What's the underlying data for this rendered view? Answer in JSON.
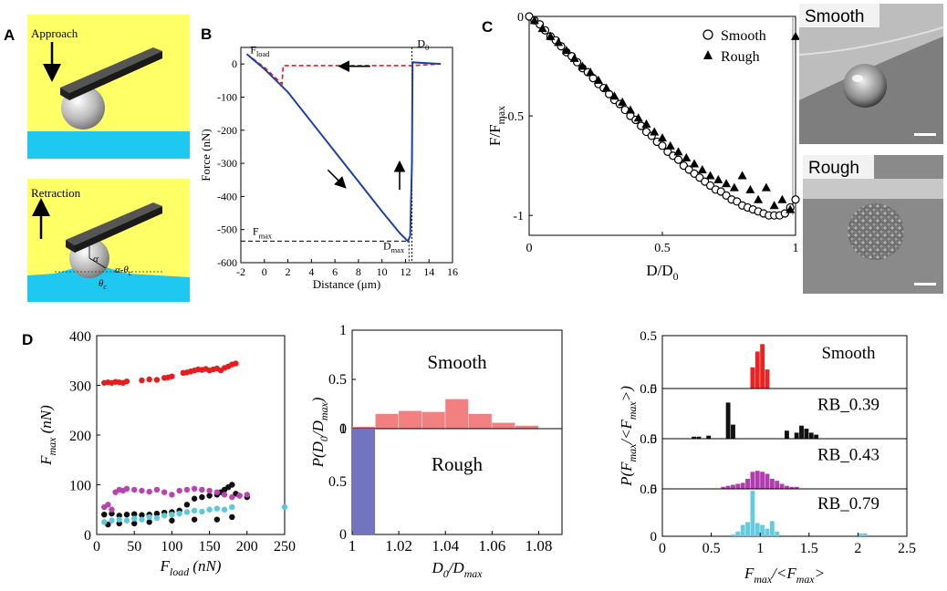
{
  "panel_letters": {
    "A": "A",
    "B": "B",
    "C": "C",
    "D": "D"
  },
  "colors": {
    "yellow": "#ffff66",
    "water": "#1ec8f0",
    "blue_line": "#1f3fa8",
    "red": "#e81c1c",
    "magenta": "#b844b4",
    "black": "#111111",
    "cyan": "#5cc8dc",
    "hist_red": "#f28080",
    "hist_blue": "#7274c0",
    "bar_red": "#ee2222",
    "bar_black": "#111111",
    "bar_magenta": "#b03cb0",
    "bar_cyan": "#66ccdd"
  },
  "panel_A": {
    "approach_label": "Approach",
    "retraction_label": "Retraction",
    "alpha_label": "α",
    "alpha_minus_theta_label": "α-θ",
    "alpha_minus_theta_sub": "c",
    "theta_label": "θ",
    "theta_sub": "c",
    "icon_arrow_down": "arrow-down-icon",
    "icon_arrow_up": "arrow-up-icon"
  },
  "chart_data": [
    {
      "id": "B",
      "type": "line",
      "xlabel": "Distance (μm)",
      "ylabel": "Force (nN)",
      "xlim": [
        -2,
        16
      ],
      "ylim": [
        -600,
        50
      ],
      "xticks": [
        -2,
        0,
        2,
        4,
        6,
        8,
        10,
        12,
        14,
        16
      ],
      "yticks": [
        0,
        -100,
        -200,
        -300,
        -400,
        -500,
        -600
      ],
      "annotations": {
        "F_load": "F",
        "F_load_sub": "load",
        "D0": "D",
        "D0_sub": "0",
        "F_max": "F",
        "F_max_sub": "max",
        "D_max": "D",
        "D_max_sub": "max"
      },
      "series": [
        {
          "name": "approach",
          "style": "dashed",
          "color": "red",
          "x": [
            -1.5,
            0,
            1.5,
            1.6,
            12.5,
            15
          ],
          "y": [
            30,
            -10,
            -60,
            -5,
            -5,
            0
          ]
        },
        {
          "name": "retraction",
          "style": "solid",
          "color": "blue",
          "x": [
            -1.5,
            0,
            2,
            4,
            6,
            8,
            10,
            11.5,
            12.2,
            12.4,
            12.55,
            12.6,
            15
          ],
          "y": [
            30,
            -15,
            -85,
            -175,
            -265,
            -355,
            -445,
            -510,
            -535,
            -520,
            -300,
            5,
            0
          ]
        }
      ]
    },
    {
      "id": "C",
      "type": "scatter",
      "xlabel": "D/D",
      "xlabel_sub": "0",
      "ylabel": "F/F",
      "ylabel_sub": "max",
      "xlim": [
        0,
        1
      ],
      "ylim": [
        -1.1,
        0
      ],
      "xticks": [
        0,
        0.5,
        1
      ],
      "yticks": [
        0,
        -0.5,
        -1
      ],
      "series": [
        {
          "name": "Smooth",
          "marker": "circle",
          "x": [
            0,
            0.02,
            0.04,
            0.06,
            0.08,
            0.1,
            0.12,
            0.14,
            0.16,
            0.18,
            0.2,
            0.22,
            0.24,
            0.26,
            0.28,
            0.3,
            0.32,
            0.34,
            0.36,
            0.38,
            0.4,
            0.42,
            0.44,
            0.46,
            0.48,
            0.5,
            0.52,
            0.54,
            0.56,
            0.58,
            0.6,
            0.62,
            0.64,
            0.66,
            0.68,
            0.7,
            0.72,
            0.74,
            0.76,
            0.78,
            0.8,
            0.82,
            0.84,
            0.86,
            0.88,
            0.9,
            0.92,
            0.94,
            0.96,
            0.98,
            1.0
          ],
          "y": [
            0,
            -0.02,
            -0.04,
            -0.07,
            -0.1,
            -0.12,
            -0.15,
            -0.18,
            -0.2,
            -0.23,
            -0.26,
            -0.28,
            -0.31,
            -0.34,
            -0.36,
            -0.39,
            -0.42,
            -0.44,
            -0.47,
            -0.5,
            -0.52,
            -0.55,
            -0.58,
            -0.6,
            -0.63,
            -0.65,
            -0.68,
            -0.7,
            -0.72,
            -0.75,
            -0.77,
            -0.79,
            -0.81,
            -0.83,
            -0.85,
            -0.87,
            -0.88,
            -0.9,
            -0.92,
            -0.93,
            -0.95,
            -0.96,
            -0.97,
            -0.98,
            -0.99,
            -1.0,
            -1.0,
            -1.0,
            -0.99,
            -0.96,
            -0.92
          ]
        },
        {
          "name": "Rough",
          "marker": "triangle",
          "x": [
            0.02,
            0.05,
            0.08,
            0.11,
            0.14,
            0.17,
            0.2,
            0.23,
            0.26,
            0.29,
            0.32,
            0.35,
            0.38,
            0.41,
            0.44,
            0.47,
            0.5,
            0.53,
            0.56,
            0.59,
            0.62,
            0.65,
            0.68,
            0.71,
            0.74,
            0.77,
            0.8,
            0.83,
            0.86,
            0.89,
            0.92,
            0.95,
            0.98,
            1.0
          ],
          "y": [
            -0.02,
            -0.06,
            -0.1,
            -0.13,
            -0.17,
            -0.21,
            -0.25,
            -0.28,
            -0.32,
            -0.36,
            -0.4,
            -0.43,
            -0.47,
            -0.51,
            -0.54,
            -0.58,
            -0.61,
            -0.65,
            -0.68,
            -0.71,
            -0.74,
            -0.77,
            -0.8,
            -0.82,
            -0.84,
            -0.86,
            -0.8,
            -0.87,
            -0.92,
            -0.86,
            -0.95,
            -0.92,
            -0.97,
            -0.1
          ]
        }
      ],
      "legend": [
        "Smooth",
        "Rough"
      ]
    },
    {
      "id": "D1",
      "type": "scatter",
      "xlabel": "F",
      "xlabel_sub": "load",
      "xlabel_unit": " (nN)",
      "ylabel": "F",
      "ylabel_sub": "max",
      "ylabel_unit": " (nN)",
      "xlim": [
        0,
        250
      ],
      "ylim": [
        0,
        400
      ],
      "xticks": [
        0,
        50,
        100,
        150,
        200,
        250
      ],
      "yticks": [
        0,
        100,
        200,
        300,
        400
      ],
      "series": [
        {
          "name": "Smooth",
          "color": "red",
          "x": [
            10,
            15,
            20,
            25,
            30,
            35,
            40,
            60,
            70,
            80,
            90,
            95,
            100,
            115,
            120,
            125,
            130,
            135,
            140,
            145,
            150,
            155,
            160,
            165,
            170,
            175,
            180,
            185
          ],
          "y": [
            305,
            306,
            305,
            307,
            306,
            305,
            308,
            310,
            312,
            311,
            315,
            316,
            318,
            325,
            326,
            328,
            330,
            332,
            331,
            333,
            330,
            332,
            334,
            330,
            335,
            338,
            342,
            344
          ]
        },
        {
          "name": "RB_0.39",
          "color": "black",
          "x": [
            10,
            20,
            30,
            40,
            50,
            60,
            70,
            80,
            90,
            100,
            110,
            120,
            130,
            140,
            150,
            160,
            165,
            170,
            175,
            180,
            185,
            190,
            200,
            15,
            30,
            50,
            70,
            100,
            130,
            160,
            180
          ],
          "y": [
            40,
            42,
            38,
            40,
            41,
            39,
            40,
            42,
            44,
            45,
            48,
            60,
            72,
            75,
            78,
            80,
            85,
            90,
            95,
            100,
            82,
            78,
            75,
            20,
            22,
            22,
            25,
            28,
            30,
            30,
            35
          ]
        },
        {
          "name": "RB_0.43",
          "color": "magenta",
          "x": [
            10,
            15,
            20,
            25,
            30,
            35,
            40,
            50,
            60,
            70,
            80,
            90,
            100,
            110,
            120,
            130,
            140,
            150,
            160,
            170,
            180,
            190,
            200
          ],
          "y": [
            55,
            60,
            50,
            85,
            90,
            88,
            92,
            90,
            88,
            86,
            90,
            85,
            80,
            88,
            90,
            92,
            90,
            88,
            85,
            80,
            75,
            78,
            80
          ]
        },
        {
          "name": "RB_0.79",
          "color": "cyan",
          "x": [
            10,
            20,
            30,
            40,
            50,
            60,
            70,
            80,
            90,
            100,
            110,
            120,
            130,
            140,
            150,
            160,
            170,
            180,
            250
          ],
          "y": [
            25,
            28,
            30,
            28,
            32,
            30,
            35,
            33,
            38,
            40,
            42,
            45,
            48,
            46,
            50,
            52,
            50,
            55,
            55
          ]
        }
      ]
    },
    {
      "id": "D2",
      "type": "bar",
      "xlabel": "D",
      "xlabel_sub": "0",
      "xlabel_tail": "/D",
      "xlabel_tail_sub": "max",
      "ylabel": "P(D",
      "ylabel_sub": "0",
      "ylabel_tail": "/D",
      "ylabel_tail_sub": "max",
      "ylabel_close": ")",
      "xlim": [
        1,
        1.09
      ],
      "xticks": [
        1,
        1.02,
        1.04,
        1.06,
        1.08
      ],
      "panels": [
        {
          "name": "Smooth",
          "ylim": [
            0,
            1
          ],
          "yticks": [
            0,
            0.5,
            1
          ],
          "color": "hist_red",
          "bins": [
            1.0,
            1.01,
            1.02,
            1.03,
            1.04,
            1.05,
            1.06,
            1.07,
            1.08
          ],
          "values": [
            0.02,
            0.15,
            0.18,
            0.17,
            0.3,
            0.15,
            0.06,
            0.03,
            0.0
          ]
        },
        {
          "name": "Rough",
          "ylim": [
            0,
            1
          ],
          "yticks": [
            0,
            0.5,
            1
          ],
          "color": "hist_blue",
          "bins": [
            1.0
          ],
          "values": [
            1.0
          ]
        }
      ]
    },
    {
      "id": "D3",
      "type": "bar",
      "xlabel": "F",
      "xlabel_sub": "max",
      "xlabel_tail": "/<F",
      "xlabel_tail_sub": "max",
      "xlabel_close": ">",
      "ylabel": "P(F",
      "ylabel_sub": "max",
      "ylabel_tail": "/<F",
      "ylabel_tail_sub": "max",
      "ylabel_close": ">)",
      "xlim": [
        0,
        2.5
      ],
      "xticks": [
        0,
        0.5,
        1,
        1.5,
        2,
        2.5
      ],
      "panels": [
        {
          "name": "Smooth",
          "ylim": [
            0,
            0.5
          ],
          "yticks": [
            0,
            0.5
          ],
          "color": "bar_red",
          "bins": [
            0.9,
            0.95,
            1.0,
            1.05
          ],
          "values": [
            0.2,
            0.35,
            0.42,
            0.18
          ]
        },
        {
          "name": "RB_0.39",
          "ylim": [
            0,
            0.5
          ],
          "yticks": [
            0,
            0.5
          ],
          "color": "bar_black",
          "bins": [
            0.3,
            0.35,
            0.45,
            0.65,
            0.7,
            1.25,
            1.35,
            1.4,
            1.45,
            1.5,
            1.55
          ],
          "values": [
            0.02,
            0.02,
            0.03,
            0.36,
            0.14,
            0.08,
            0.06,
            0.13,
            0.1,
            0.06,
            0.04
          ]
        },
        {
          "name": "RB_0.43",
          "ylim": [
            0,
            0.5
          ],
          "yticks": [
            0,
            0.5
          ],
          "color": "bar_magenta",
          "bins": [
            0.6,
            0.65,
            0.7,
            0.75,
            0.8,
            0.85,
            0.9,
            0.95,
            1.0,
            1.05,
            1.1,
            1.15,
            1.2,
            1.25,
            1.3,
            1.35
          ],
          "values": [
            0.02,
            0.03,
            0.04,
            0.05,
            0.06,
            0.1,
            0.17,
            0.18,
            0.17,
            0.15,
            0.1,
            0.08,
            0.05,
            0.03,
            0.02,
            0.02
          ]
        },
        {
          "name": "RB_0.79",
          "ylim": [
            0,
            0.5
          ],
          "yticks": [
            0,
            0.5
          ],
          "color": "bar_cyan",
          "bins": [
            0.7,
            0.75,
            0.8,
            0.85,
            0.9,
            0.95,
            1.0,
            1.05,
            1.1,
            1.15,
            2.0,
            2.05
          ],
          "values": [
            0.02,
            0.05,
            0.12,
            0.15,
            0.48,
            0.14,
            0.12,
            0.08,
            0.16,
            0.05,
            0.03,
            0.03
          ]
        }
      ]
    }
  ],
  "images_C": {
    "smooth_label": "Smooth",
    "rough_label": "Rough"
  }
}
